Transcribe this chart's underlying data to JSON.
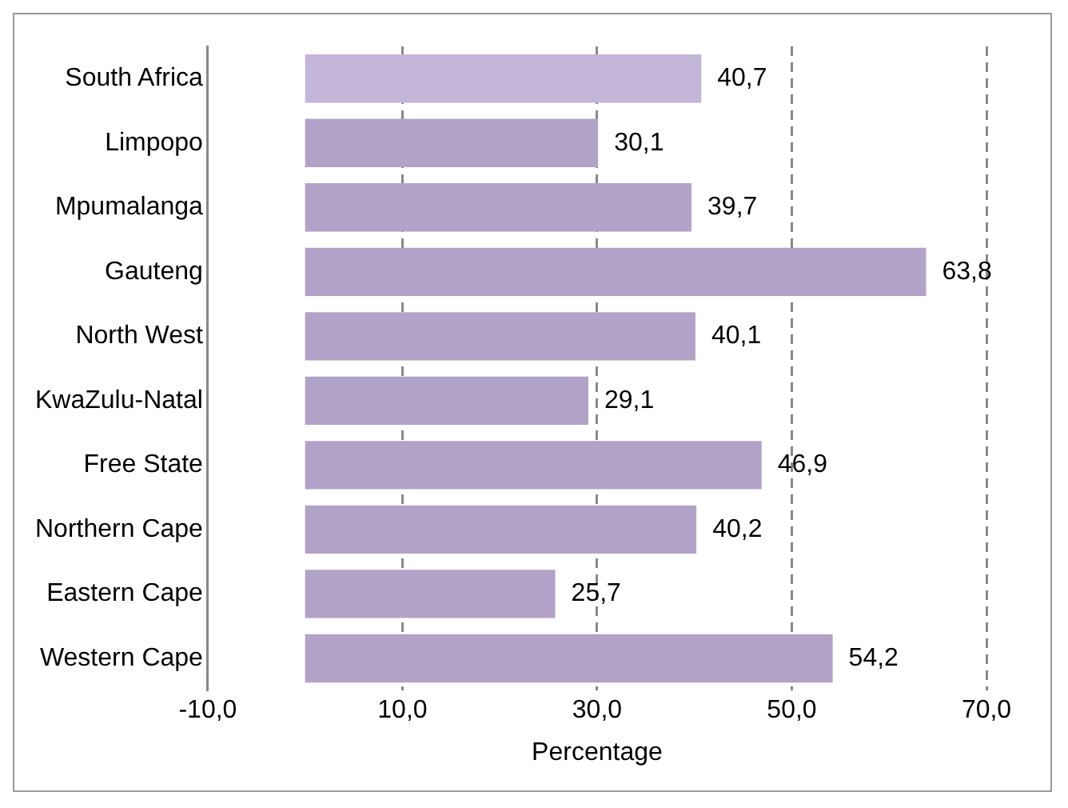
{
  "chart_data": {
    "type": "bar",
    "orientation": "horizontal",
    "xlabel": "Percentage",
    "categories": [
      "South Africa",
      "Limpopo",
      "Mpumalanga",
      "Gauteng",
      "North West",
      "KwaZulu-Natal",
      "Free State",
      "Northern Cape",
      "Eastern Cape",
      "Western Cape"
    ],
    "values": [
      40.7,
      30.1,
      39.7,
      63.8,
      40.1,
      29.1,
      46.9,
      40.2,
      25.7,
      54.2
    ],
    "value_labels": [
      "40,7",
      "30,1",
      "39,7",
      "63,8",
      "40,1",
      "29,1",
      "46,9",
      "40,2",
      "25,7",
      "54,2"
    ],
    "colors": [
      "#c3b6d8",
      "#b3a2c7",
      "#b3a2c7",
      "#b3a2c7",
      "#b3a2c7",
      "#b3a2c7",
      "#b3a2c7",
      "#b3a2c7",
      "#b3a2c7",
      "#b3a2c7"
    ],
    "xlim": [
      -10,
      70
    ],
    "xticks": [
      {
        "value": -10,
        "label": "-10,0"
      },
      {
        "value": 10,
        "label": "10,0"
      },
      {
        "value": 30,
        "label": "30,0"
      },
      {
        "value": 50,
        "label": "50,0"
      },
      {
        "value": 70,
        "label": "70,0"
      }
    ],
    "grid": "x",
    "legend": false
  }
}
